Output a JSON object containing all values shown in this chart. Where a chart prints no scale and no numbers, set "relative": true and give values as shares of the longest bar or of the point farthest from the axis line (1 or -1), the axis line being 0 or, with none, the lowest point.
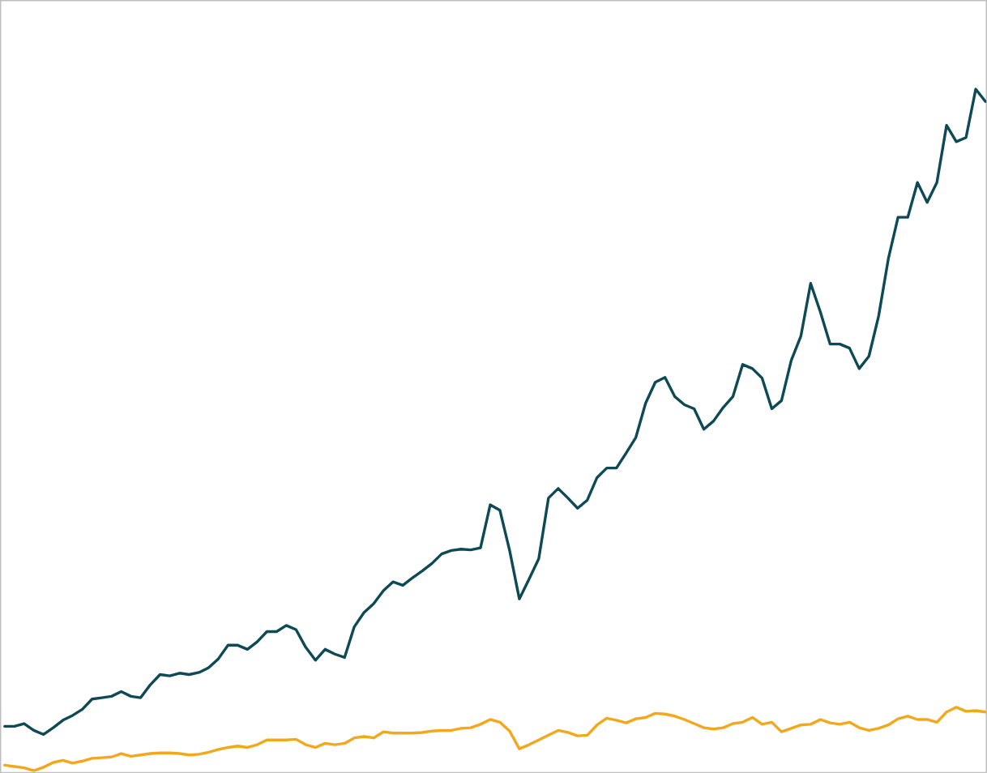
{
  "chart_data": {
    "type": "line",
    "relative": true,
    "categories": [
      null,
      null,
      null,
      null,
      null,
      null,
      null,
      null,
      null,
      null,
      null,
      null,
      null,
      null,
      null,
      null,
      null,
      null,
      null,
      null,
      null,
      null,
      null,
      null,
      null,
      null,
      null,
      null,
      null,
      null,
      null,
      null,
      null,
      null,
      null,
      null,
      null,
      null,
      null,
      null,
      null,
      null,
      null,
      null,
      null,
      null,
      null,
      null,
      null,
      null,
      null,
      null,
      null,
      null,
      null,
      null,
      null,
      null,
      null,
      null,
      null,
      null,
      null,
      null,
      null,
      null,
      null,
      null,
      null,
      null,
      null,
      null,
      null,
      null,
      null,
      null,
      null,
      null,
      null,
      null,
      null,
      null,
      null,
      null,
      null,
      null,
      null,
      null,
      null,
      null,
      null,
      null,
      null,
      null,
      null,
      null,
      null,
      null,
      null,
      null,
      null,
      null
    ],
    "series": [
      {
        "color": "#0e4a55",
        "values": [
          0.065,
          0.065,
          0.069,
          0.059,
          0.053,
          0.063,
          0.074,
          0.081,
          0.09,
          0.105,
          0.107,
          0.109,
          0.116,
          0.109,
          0.107,
          0.126,
          0.141,
          0.139,
          0.143,
          0.141,
          0.144,
          0.151,
          0.164,
          0.184,
          0.184,
          0.178,
          0.189,
          0.204,
          0.204,
          0.213,
          0.207,
          0.181,
          0.162,
          0.178,
          0.171,
          0.166,
          0.211,
          0.232,
          0.245,
          0.264,
          0.277,
          0.272,
          0.283,
          0.293,
          0.304,
          0.318,
          0.323,
          0.325,
          0.324,
          0.327,
          0.39,
          0.382,
          0.323,
          0.252,
          0.281,
          0.311,
          0.4,
          0.414,
          0.4,
          0.385,
          0.397,
          0.43,
          0.444,
          0.444,
          0.466,
          0.489,
          0.539,
          0.57,
          0.577,
          0.549,
          0.537,
          0.531,
          0.501,
          0.513,
          0.533,
          0.549,
          0.596,
          0.59,
          0.576,
          0.531,
          0.543,
          0.602,
          0.638,
          0.715,
          0.673,
          0.626,
          0.626,
          0.62,
          0.59,
          0.608,
          0.667,
          0.751,
          0.812,
          0.812,
          0.863,
          0.834,
          0.863,
          0.947,
          0.923,
          0.929,
          1.0,
          0.982
        ]
      },
      {
        "color": "#f3a81c",
        "values": [
          0.008,
          0.006,
          0.004,
          0.0,
          0.005,
          0.012,
          0.015,
          0.011,
          0.014,
          0.018,
          0.019,
          0.02,
          0.025,
          0.021,
          0.023,
          0.025,
          0.026,
          0.026,
          0.025,
          0.023,
          0.024,
          0.027,
          0.031,
          0.034,
          0.036,
          0.034,
          0.038,
          0.045,
          0.045,
          0.045,
          0.046,
          0.038,
          0.034,
          0.04,
          0.038,
          0.04,
          0.048,
          0.05,
          0.048,
          0.057,
          0.055,
          0.055,
          0.055,
          0.056,
          0.058,
          0.059,
          0.059,
          0.062,
          0.063,
          0.068,
          0.075,
          0.071,
          0.058,
          0.032,
          0.038,
          0.045,
          0.052,
          0.059,
          0.056,
          0.051,
          0.052,
          0.067,
          0.077,
          0.074,
          0.07,
          0.076,
          0.078,
          0.084,
          0.083,
          0.08,
          0.075,
          0.069,
          0.063,
          0.061,
          0.063,
          0.069,
          0.071,
          0.078,
          0.068,
          0.071,
          0.057,
          0.062,
          0.067,
          0.068,
          0.075,
          0.07,
          0.068,
          0.071,
          0.063,
          0.059,
          0.062,
          0.067,
          0.076,
          0.08,
          0.075,
          0.075,
          0.071,
          0.086,
          0.093,
          0.087,
          0.088,
          0.086
        ]
      }
    ]
  }
}
